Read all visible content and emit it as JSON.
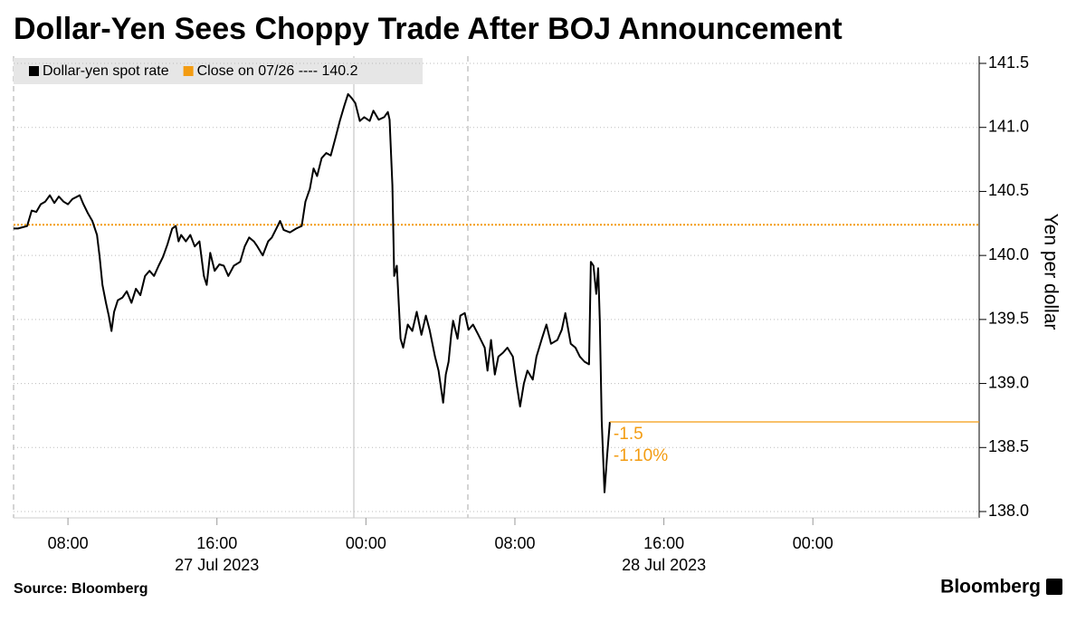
{
  "chart_data": {
    "type": "line",
    "title": "Dollar-Yen Sees Choppy Trade After BOJ Announcement",
    "y_label": "Yen per dollar",
    "source": "Source: Bloomberg",
    "brand": "Bloomberg",
    "x": [
      5.08,
      5.32,
      5.81,
      6.05,
      6.3,
      6.54,
      6.78,
      7.03,
      7.27,
      7.51,
      7.76,
      8.0,
      8.24,
      8.63,
      8.83,
      9.07,
      9.31,
      9.56,
      9.7,
      9.85,
      10.04,
      10.19,
      10.34,
      10.48,
      10.68,
      10.92,
      11.16,
      11.41,
      11.65,
      11.89,
      12.14,
      12.38,
      12.62,
      12.87,
      13.11,
      13.35,
      13.6,
      13.79,
      13.94,
      14.08,
      14.33,
      14.57,
      14.81,
      15.06,
      15.3,
      15.45,
      15.64,
      15.88,
      16.13,
      16.37,
      16.61,
      16.91,
      17.25,
      17.49,
      17.73,
      17.98,
      18.17,
      18.46,
      18.75,
      18.95,
      19.19,
      19.39,
      19.58,
      19.92,
      20.26,
      20.55,
      20.75,
      20.99,
      21.19,
      21.38,
      21.62,
      21.87,
      22.11,
      22.35,
      22.6,
      22.84,
      23.04,
      23.23,
      23.43,
      23.67,
      23.91,
      24.2,
      24.4,
      24.69,
      24.98,
      25.18,
      25.27,
      25.42,
      25.52,
      25.66,
      25.86,
      26.0,
      26.25,
      26.49,
      26.73,
      26.98,
      27.22,
      27.42,
      27.71,
      27.9,
      28.15,
      28.29,
      28.44,
      28.58,
      28.68,
      28.92,
      29.07,
      29.31,
      29.51,
      29.75,
      30.04,
      30.38,
      30.53,
      30.72,
      30.92,
      31.11,
      31.36,
      31.6,
      31.89,
      32.09,
      32.28,
      32.48,
      32.67,
      32.96,
      33.16,
      33.45,
      33.69,
      33.94,
      34.28,
      34.52,
      34.71,
      35.0,
      35.25,
      35.49,
      35.74,
      35.98,
      36.08,
      36.22,
      36.37,
      36.47,
      36.56,
      36.66,
      36.81,
      36.95,
      37.1
    ],
    "series": [
      {
        "name": "Dollar-yen spot rate",
        "color": "#000000",
        "values": [
          140.21,
          140.21,
          140.23,
          140.35,
          140.34,
          140.4,
          140.42,
          140.47,
          140.41,
          140.46,
          140.42,
          140.4,
          140.44,
          140.47,
          140.4,
          140.33,
          140.27,
          140.16,
          139.99,
          139.77,
          139.63,
          139.53,
          139.41,
          139.56,
          139.65,
          139.67,
          139.72,
          139.63,
          139.74,
          139.69,
          139.84,
          139.88,
          139.84,
          139.92,
          139.99,
          140.09,
          140.21,
          140.23,
          140.11,
          140.16,
          140.11,
          140.16,
          140.07,
          140.11,
          139.84,
          139.77,
          140.02,
          139.88,
          139.93,
          139.92,
          139.84,
          139.92,
          139.95,
          140.07,
          140.14,
          140.11,
          140.07,
          140.0,
          140.11,
          140.14,
          140.21,
          140.27,
          140.2,
          140.18,
          140.21,
          140.23,
          140.42,
          140.52,
          140.68,
          140.62,
          140.76,
          140.8,
          140.78,
          140.91,
          141.05,
          141.17,
          141.26,
          141.23,
          141.19,
          141.05,
          141.08,
          141.05,
          141.13,
          141.06,
          141.08,
          141.12,
          141.06,
          140.55,
          139.84,
          139.92,
          139.35,
          139.28,
          139.46,
          139.41,
          139.56,
          139.38,
          139.53,
          139.42,
          139.21,
          139.1,
          138.85,
          139.07,
          139.17,
          139.38,
          139.49,
          139.35,
          139.53,
          139.55,
          139.42,
          139.46,
          139.38,
          139.28,
          139.1,
          139.34,
          139.07,
          139.21,
          139.24,
          139.28,
          139.21,
          139.0,
          138.82,
          139.0,
          139.1,
          139.03,
          139.21,
          139.35,
          139.46,
          139.31,
          139.34,
          139.42,
          139.55,
          139.31,
          139.28,
          139.21,
          139.17,
          139.15,
          139.95,
          139.92,
          139.7,
          139.9,
          139.49,
          138.71,
          138.15,
          138.43,
          138.7
        ]
      }
    ],
    "reference_line": {
      "name": "Close on 07/26 ---- 140.2",
      "color": "#f39c12",
      "value": 140.24
    },
    "last_value_color": "#f39c12",
    "annotations": [
      "-1.5",
      "-1.10%"
    ],
    "xlim": [
      5.08,
      56.93
    ],
    "xticks": [
      {
        "value": 8,
        "label": "08:00"
      },
      {
        "value": 16,
        "label": "16:00"
      },
      {
        "value": 24,
        "label": "00:00"
      },
      {
        "value": 32,
        "label": "08:00"
      },
      {
        "value": 40,
        "label": "16:00"
      },
      {
        "value": 48,
        "label": "00:00"
      }
    ],
    "date_labels": [
      {
        "value": 16,
        "label": "27 Jul 2023"
      },
      {
        "value": 40,
        "label": "28 Jul 2023"
      }
    ],
    "ylim": [
      138.0,
      141.5
    ],
    "yticks": [
      {
        "value": 138.0,
        "label": "138.0"
      },
      {
        "value": 138.5,
        "label": "138.5"
      },
      {
        "value": 139.0,
        "label": "139.0"
      },
      {
        "value": 139.5,
        "label": "139.5"
      },
      {
        "value": 140.0,
        "label": "140.0"
      },
      {
        "value": 140.5,
        "label": "140.5"
      },
      {
        "value": 141.0,
        "label": "141.0"
      },
      {
        "value": 141.5,
        "label": "141.5"
      }
    ],
    "grid": true
  }
}
